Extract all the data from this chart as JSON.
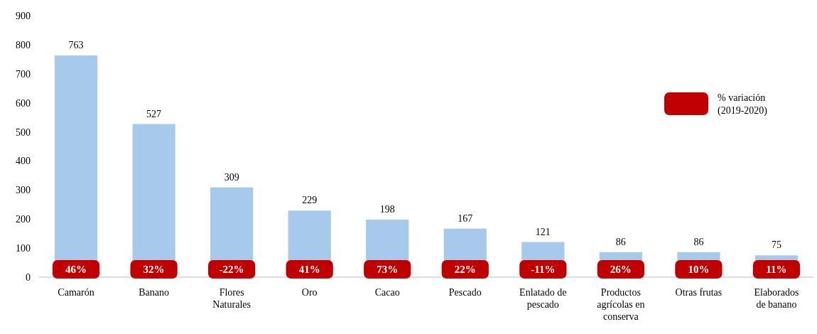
{
  "chart_data": {
    "type": "bar",
    "categories": [
      "Camarón",
      "Banano",
      "Flores Naturales",
      "Oro",
      "Cacao",
      "Pescado",
      "Enlatado de pescado",
      "Productos agrícolas en conserva",
      "Otras frutas",
      "Elaborados de banano"
    ],
    "values": [
      763,
      527,
      309,
      229,
      198,
      167,
      121,
      86,
      86,
      75
    ],
    "color": "#a7c9ec",
    "annotations": [
      "46%",
      "32%",
      "-22%",
      "41%",
      "73%",
      "22%",
      "-11%",
      "26%",
      "10%",
      "11%"
    ],
    "legend_title": "% variación (2019-2020)",
    "ylim": [
      0,
      900
    ],
    "yticks": [
      0,
      100,
      200,
      300,
      400,
      500,
      600,
      700,
      800,
      900
    ],
    "data_labels": true
  }
}
